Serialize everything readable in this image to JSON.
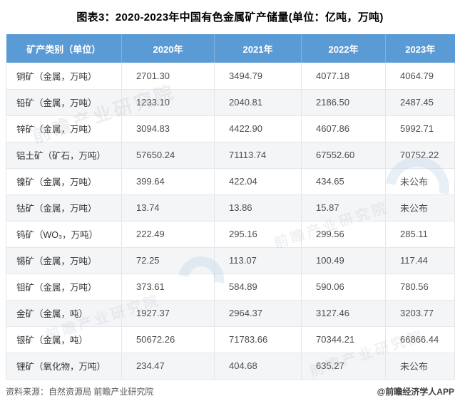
{
  "title": "图表3：2020-2023年中国有色金属矿产储量(单位：亿吨，万吨)",
  "chart_data": {
    "type": "table",
    "title": "图表3：2020-2023年中国有色金属矿产储量(单位：亿吨，万吨)",
    "columns": [
      "矿产类别（单位）",
      "2020年",
      "2021年",
      "2022年",
      "2023年"
    ],
    "rows": [
      {
        "category": "铜矿（金属，万吨）",
        "values": [
          "2701.30",
          "3494.79",
          "4077.18",
          "4064.79"
        ]
      },
      {
        "category": "铅矿（金属，万吨）",
        "values": [
          "1233.10",
          "2040.81",
          "2186.50",
          "2487.45"
        ]
      },
      {
        "category": "锌矿（金属，万吨）",
        "values": [
          "3094.83",
          "4422.90",
          "4607.86",
          "5992.71"
        ]
      },
      {
        "category": "铝土矿（矿石，万吨）",
        "values": [
          "57650.24",
          "71113.74",
          "67552.60",
          "70752.22"
        ]
      },
      {
        "category": "镍矿（金属，万吨）",
        "values": [
          "399.64",
          "422.04",
          "434.65",
          "未公布"
        ]
      },
      {
        "category": "钴矿（金属，万吨）",
        "values": [
          "13.74",
          "13.86",
          "15.87",
          "未公布"
        ]
      },
      {
        "category": "钨矿（WO₃，万吨）",
        "values": [
          "222.49",
          "295.16",
          "299.56",
          "285.11"
        ]
      },
      {
        "category": "锡矿（金属，万吨）",
        "values": [
          "72.25",
          "113.07",
          "100.49",
          "117.44"
        ]
      },
      {
        "category": "钼矿（金属，万吨）",
        "values": [
          "373.61",
          "584.89",
          "590.06",
          "780.56"
        ]
      },
      {
        "category": "金矿（金属，吨）",
        "values": [
          "1927.37",
          "2964.37",
          "3127.46",
          "3203.77"
        ]
      },
      {
        "category": "银矿（金属，吨）",
        "values": [
          "50672.26",
          "71783.66",
          "70344.21",
          "66866.44"
        ]
      },
      {
        "category": "锂矿（氧化物，万吨）",
        "values": [
          "234.47",
          "404.68",
          "635.27",
          "未公布"
        ]
      }
    ]
  },
  "footer": {
    "source": "资料来源：自然资源局 前瞻产业研究院",
    "credit": "@前瞻经济学人APP"
  },
  "watermark": {
    "text": "前瞻产业研究院"
  },
  "colors": {
    "header_bg": "#5b9bd5",
    "header_text": "#ffffff",
    "row_alt_bg": "#f4f5f7",
    "row_bg": "#ffffff",
    "grid_border": "#e4e6ea",
    "body_text": "#4d4d4d",
    "category_text": "#333333",
    "title_text": "#000000",
    "footer_text": "#595959",
    "watermark_gray": "#9aa3ad",
    "watermark_blue": "#bcd4ea"
  }
}
